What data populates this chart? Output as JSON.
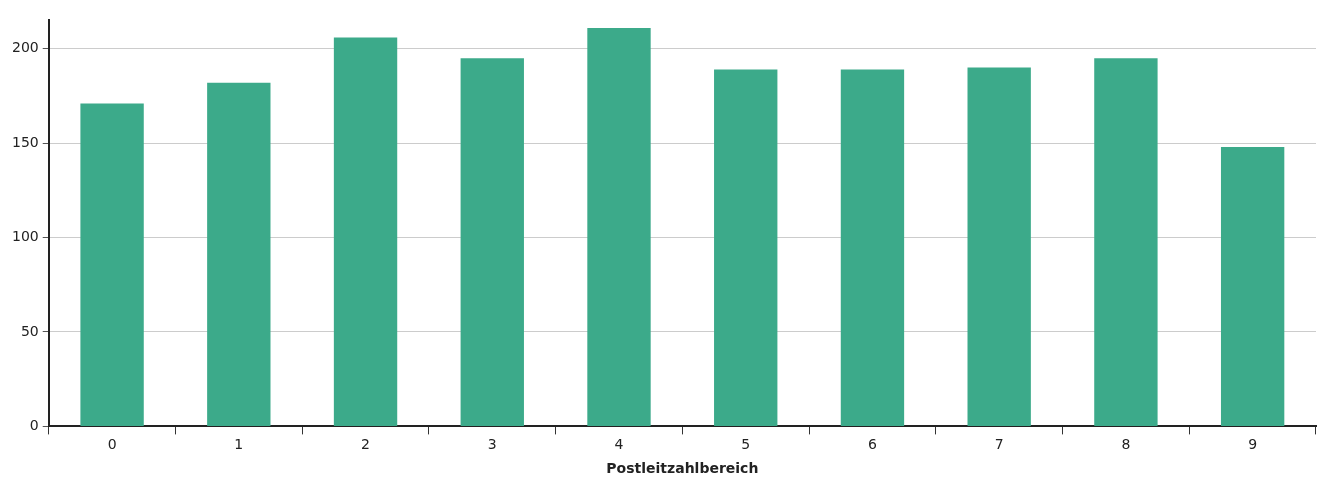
{
  "chart_data": {
    "type": "bar",
    "xlabel": "Postleitzahlbereich",
    "categories": [
      "0",
      "1",
      "2",
      "3",
      "4",
      "5",
      "6",
      "7",
      "8",
      "9"
    ],
    "values": [
      171,
      182,
      206,
      195,
      211,
      189,
      189,
      190,
      195,
      148
    ],
    "color": "#3caa8a",
    "ylim": [
      0,
      215
    ],
    "yticks": [
      0,
      50,
      100,
      150,
      200
    ],
    "grid": "y",
    "legend": false
  }
}
